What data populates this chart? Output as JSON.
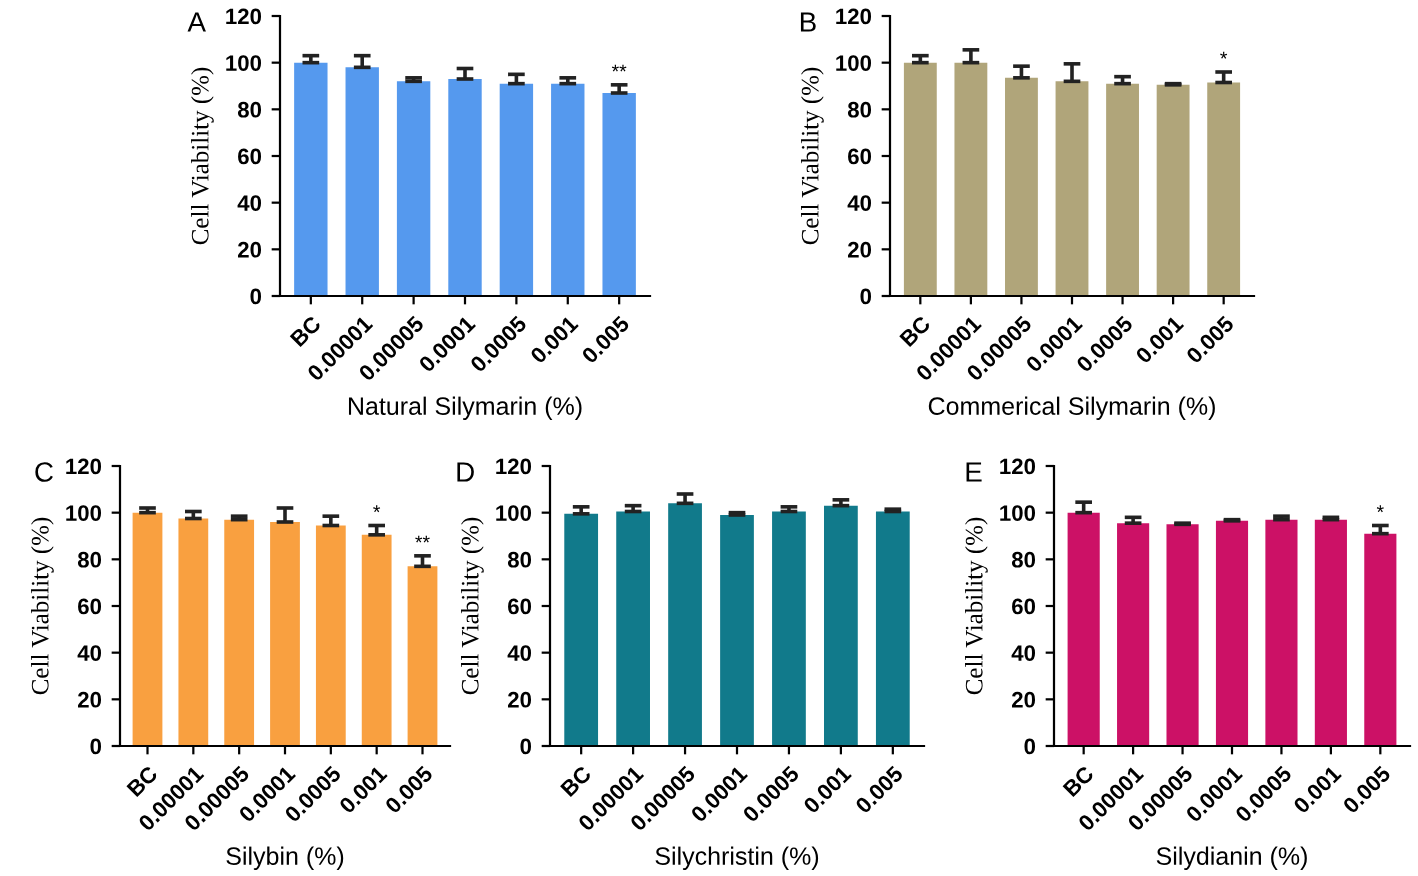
{
  "chart_data": [
    {
      "type": "bar",
      "title": "A",
      "xlabel": "Natural Silymarin (%)",
      "ylabel": "Cell Viability (%)",
      "categories": [
        "BC",
        "0.00001",
        "0.00005",
        "0.0001",
        "0.0005",
        "0.001",
        "0.005"
      ],
      "values": [
        100,
        98,
        92,
        93,
        91,
        91,
        87
      ],
      "errors": [
        [
          100,
          103
        ],
        [
          98,
          103
        ],
        [
          92,
          93.5
        ],
        [
          93,
          97.5
        ],
        [
          91,
          95
        ],
        [
          91,
          93.5
        ],
        [
          87,
          90.5
        ]
      ],
      "color": "#5599ee",
      "ylim": [
        0,
        120
      ],
      "yticks": [
        0,
        20,
        40,
        60,
        80,
        100,
        120
      ],
      "grid": false,
      "annotations": [
        {
          "text": "**",
          "x": "0.005",
          "y": 90.5
        }
      ]
    },
    {
      "type": "bar",
      "title": "B",
      "xlabel": "Commerical Silymarin (%)",
      "ylabel": "Cell Viability (%)",
      "categories": [
        "BC",
        "0.00001",
        "0.00005",
        "0.0001",
        "0.0005",
        "0.001",
        "0.005"
      ],
      "values": [
        100,
        100,
        93.5,
        92,
        91,
        90.5,
        91.5
      ],
      "errors": [
        [
          100,
          103
        ],
        [
          100,
          105.5
        ],
        [
          93.5,
          98.5
        ],
        [
          92,
          99.5
        ],
        [
          91,
          94
        ],
        [
          90.5,
          91
        ],
        [
          91.5,
          96
        ]
      ],
      "color": "#b0a57a",
      "ylim": [
        0,
        120
      ],
      "yticks": [
        0,
        20,
        40,
        60,
        80,
        100,
        120
      ],
      "grid": false,
      "annotations": [
        {
          "text": "*",
          "x": "0.005",
          "y": 96
        }
      ]
    },
    {
      "type": "bar",
      "title": "C",
      "xlabel": "Silybin (%)",
      "ylabel": "Cell Viability (%)",
      "categories": [
        "BC",
        "0.00001",
        "0.00005",
        "0.0001",
        "0.0005",
        "0.001",
        "0.005"
      ],
      "values": [
        100,
        97.5,
        97,
        96,
        94.5,
        90.5,
        77
      ],
      "errors": [
        [
          100,
          102
        ],
        [
          97.5,
          100.5
        ],
        [
          97,
          98.5
        ],
        [
          96,
          102
        ],
        [
          94.5,
          98.5
        ],
        [
          90.5,
          94.5
        ],
        [
          77,
          81.5
        ]
      ],
      "color": "#f9a040",
      "ylim": [
        0,
        120
      ],
      "yticks": [
        0,
        20,
        40,
        60,
        80,
        100,
        120
      ],
      "grid": false,
      "annotations": [
        {
          "text": "*",
          "x": "0.001",
          "y": 94.5
        },
        {
          "text": "**",
          "x": "0.005",
          "y": 81.5
        }
      ]
    },
    {
      "type": "bar",
      "title": "D",
      "xlabel": "Silychristin (%)",
      "ylabel": "Cell Viability (%)",
      "categories": [
        "BC",
        "0.00001",
        "0.00005",
        "0.0001",
        "0.0005",
        "0.001",
        "0.005"
      ],
      "values": [
        99.5,
        100.5,
        104,
        99,
        100.5,
        103,
        100.5
      ],
      "errors": [
        [
          99.5,
          102.5
        ],
        [
          100.5,
          103
        ],
        [
          104,
          108
        ],
        [
          99,
          100
        ],
        [
          100.5,
          102.5
        ],
        [
          103,
          105.5
        ],
        [
          100.5,
          101.5
        ]
      ],
      "color": "#117a8b",
      "ylim": [
        0,
        120
      ],
      "yticks": [
        0,
        20,
        40,
        60,
        80,
        100,
        120
      ],
      "grid": false
    },
    {
      "type": "bar",
      "title": "E",
      "xlabel": "Silydianin (%)",
      "ylabel": "Cell Viability (%)",
      "categories": [
        "BC",
        "0.00001",
        "0.00005",
        "0.0001",
        "0.0005",
        "0.001",
        "0.005"
      ],
      "values": [
        100,
        95.5,
        95,
        96.5,
        97,
        97,
        91
      ],
      "errors": [
        [
          100,
          104.5
        ],
        [
          95.5,
          98
        ],
        [
          95,
          95.5
        ],
        [
          96.5,
          97
        ],
        [
          97,
          98.5
        ],
        [
          97,
          98
        ],
        [
          91,
          94.5
        ]
      ],
      "color": "#cc1166",
      "ylim": [
        0,
        120
      ],
      "yticks": [
        0,
        20,
        40,
        60,
        80,
        100,
        120
      ],
      "grid": false,
      "annotations": [
        {
          "text": "*",
          "x": "0.005",
          "y": 94.5
        }
      ]
    }
  ]
}
